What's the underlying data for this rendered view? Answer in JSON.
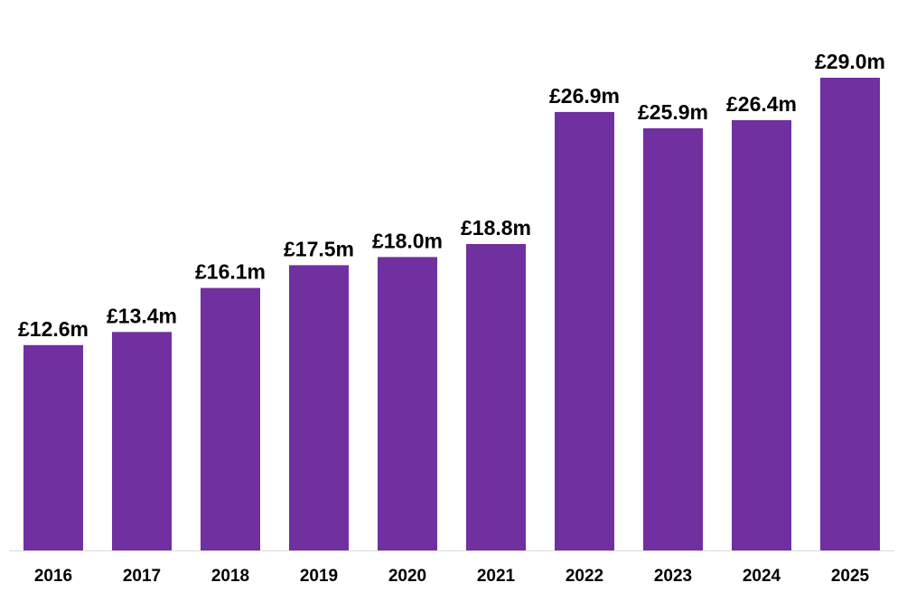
{
  "chart_data": {
    "type": "bar",
    "title": "",
    "xlabel": "",
    "ylabel": "",
    "categories": [
      "2016",
      "2017",
      "2018",
      "2019",
      "2020",
      "2021",
      "2022",
      "2023",
      "2024",
      "2025"
    ],
    "values": [
      12.6,
      13.4,
      16.1,
      17.5,
      18.0,
      18.8,
      26.9,
      25.9,
      26.4,
      29.0
    ],
    "value_labels": [
      "£12.6m",
      "£13.4m",
      "£16.1m",
      "£17.5m",
      "£18.0m",
      "£18.8m",
      "£26.9m",
      "£25.9m",
      "£26.4m",
      "£29.0m"
    ],
    "ylim": [
      0,
      29.0
    ],
    "grid": false,
    "legend": "none",
    "colors": {
      "bar": "#7030A0",
      "axis": "#D9D9D9",
      "text": "#000000"
    }
  }
}
